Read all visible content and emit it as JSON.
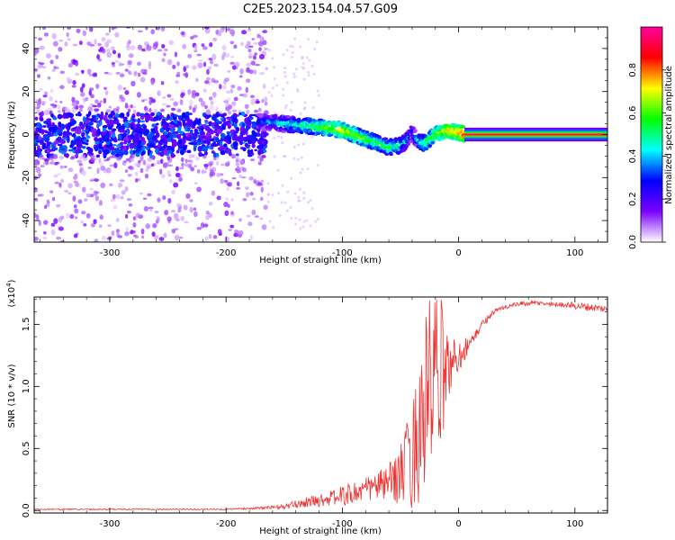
{
  "title": "C2E5.2023.154.04.57.G09",
  "chart_data": [
    {
      "type": "heatmap",
      "xlabel": "Height of straight line (km)",
      "ylabel": "Frequency (Hz)",
      "xlim": [
        -365,
        128
      ],
      "ylim": [
        -50,
        50
      ],
      "x_ticks": [
        -300,
        -200,
        -100,
        0,
        100
      ],
      "x_tick_labels": [
        "-300",
        "-200",
        "-100",
        "0",
        "100"
      ],
      "y_ticks": [
        -40,
        -20,
        0,
        20,
        40
      ],
      "y_tick_labels": [
        "-40",
        "-20",
        "0",
        "20",
        "40"
      ],
      "colorbar": {
        "label": "Normalized spectral amplitude",
        "range": [
          0,
          1
        ],
        "ticks": [
          0.0,
          0.2,
          0.4,
          0.6,
          0.8
        ],
        "tick_labels": [
          "0.0",
          "0.2",
          "0.4",
          "0.6",
          "0.8"
        ],
        "colors": [
          "#ffffff",
          "#7b00ff",
          "#0000ff",
          "#00ffff",
          "#00ff00",
          "#ffff00",
          "#ff0000",
          "#ff00a0"
        ]
      },
      "ridge": {
        "x": [
          -170,
          -150,
          -130,
          -110,
          -100,
          -90,
          -80,
          -70,
          -60,
          -50,
          -45,
          -40,
          -35,
          -30,
          -20,
          -10,
          0,
          5,
          128
        ],
        "frequency": [
          6,
          5,
          4,
          3,
          2,
          0,
          -2,
          -4,
          -6,
          -5,
          -3,
          1,
          -3,
          -4,
          0,
          2,
          1,
          0,
          0
        ],
        "amplitude": [
          0.4,
          0.5,
          0.6,
          0.7,
          0.75,
          0.7,
          0.65,
          0.6,
          0.6,
          0.55,
          0.5,
          0.4,
          0.5,
          0.6,
          0.7,
          0.8,
          0.85,
          0.9,
          0.95
        ]
      },
      "noise_region": {
        "x_range": [
          -365,
          -165
        ],
        "frequency_spread": [
          -50,
          50
        ]
      },
      "grid": false
    },
    {
      "type": "line",
      "xlabel": "Height of straight line (km)",
      "ylabel": "SNR (10 * v/v)",
      "y_multiplier": "(x10^4)",
      "xlim": [
        -365,
        128
      ],
      "ylim": [
        -0.02,
        1.72
      ],
      "x_ticks": [
        -300,
        -200,
        -100,
        0,
        100
      ],
      "x_tick_labels": [
        "-300",
        "-200",
        "-100",
        "0",
        "100"
      ],
      "y_ticks": [
        0.0,
        0.5,
        1.0,
        1.5
      ],
      "y_tick_labels": [
        "0.0",
        "0.5",
        "1.0",
        "1.5"
      ],
      "color": "#ee3333",
      "series": [
        {
          "x": [
            -365,
            -300,
            -250,
            -200,
            -170,
            -150,
            -140,
            -130,
            -120,
            -110,
            -100,
            -90,
            -80,
            -70,
            -60,
            -50,
            -45,
            -40,
            -35,
            -30,
            -25,
            -20,
            -15,
            -10,
            -5,
            0,
            5,
            10,
            15,
            20,
            25,
            30,
            40,
            50,
            60,
            70,
            80,
            90,
            100,
            110,
            120,
            128
          ],
          "y": [
            0.01,
            0.01,
            0.01,
            0.01,
            0.02,
            0.03,
            0.05,
            0.07,
            0.08,
            0.1,
            0.12,
            0.14,
            0.17,
            0.2,
            0.22,
            0.3,
            0.35,
            0.45,
            0.6,
            0.8,
            0.95,
            1.05,
            1.1,
            1.15,
            1.2,
            1.25,
            1.3,
            1.35,
            1.42,
            1.5,
            1.55,
            1.6,
            1.64,
            1.66,
            1.67,
            1.67,
            1.66,
            1.66,
            1.65,
            1.64,
            1.63,
            1.62
          ],
          "noise_amplitude": [
            0.005,
            0.005,
            0.005,
            0.005,
            0.01,
            0.02,
            0.03,
            0.04,
            0.05,
            0.06,
            0.08,
            0.1,
            0.1,
            0.12,
            0.15,
            0.25,
            0.35,
            0.45,
            0.55,
            0.7,
            0.8,
            0.7,
            0.6,
            0.3,
            0.2,
            0.15,
            0.1,
            0.05,
            0.04,
            0.03,
            0.03,
            0.02,
            0.02,
            0.02,
            0.02,
            0.02,
            0.02,
            0.02,
            0.03,
            0.03,
            0.03,
            0.03
          ]
        }
      ],
      "grid": false
    }
  ]
}
